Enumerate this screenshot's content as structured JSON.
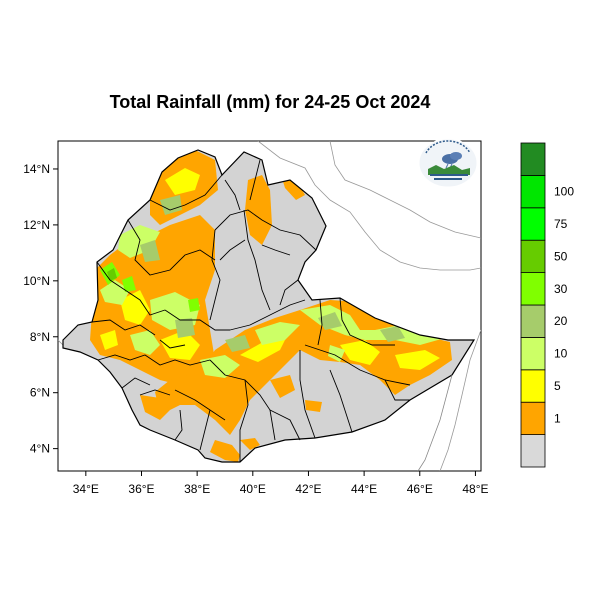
{
  "title": "Total Rainfall (mm) for 24-25 Oct 2024",
  "x_ticks": [
    {
      "lon": 34,
      "label": "34°E"
    },
    {
      "lon": 36,
      "label": "36°E"
    },
    {
      "lon": 38,
      "label": "38°E"
    },
    {
      "lon": 40,
      "label": "40°E"
    },
    {
      "lon": 42,
      "label": "42°E"
    },
    {
      "lon": 44,
      "label": "44°E"
    },
    {
      "lon": 46,
      "label": "46°E"
    },
    {
      "lon": 48,
      "label": "48°E"
    }
  ],
  "y_ticks": [
    {
      "lat": 4,
      "label": "4°N"
    },
    {
      "lat": 6,
      "label": "6°N"
    },
    {
      "lat": 8,
      "label": "8°N"
    },
    {
      "lat": 10,
      "label": "10°N"
    },
    {
      "lat": 12,
      "label": "12°N"
    },
    {
      "lat": 14,
      "label": "14°N"
    }
  ],
  "extent": {
    "lon_min": 33,
    "lon_max": 48.2,
    "lat_min": 3.2,
    "lat_max": 15
  },
  "legend": {
    "bins": [
      {
        "color": "#d9d9d9",
        "label": ""
      },
      {
        "color": "#ffa500",
        "label": "1"
      },
      {
        "color": "#ffff00",
        "label": "5"
      },
      {
        "color": "#ccff66",
        "label": "10"
      },
      {
        "color": "#a6cc6b",
        "label": "20"
      },
      {
        "color": "#80ff00",
        "label": "30"
      },
      {
        "color": "#66cc00",
        "label": "50"
      },
      {
        "color": "#00ff00",
        "label": "75"
      },
      {
        "color": "#00e600",
        "label": "100"
      },
      {
        "color": "#228b22",
        "label": ""
      }
    ]
  },
  "colors": {
    "land": "#d3d3d3",
    "outline": "#000000",
    "coast": "#999999"
  },
  "logo": {
    "icon": "meteorology-agency-logo"
  }
}
